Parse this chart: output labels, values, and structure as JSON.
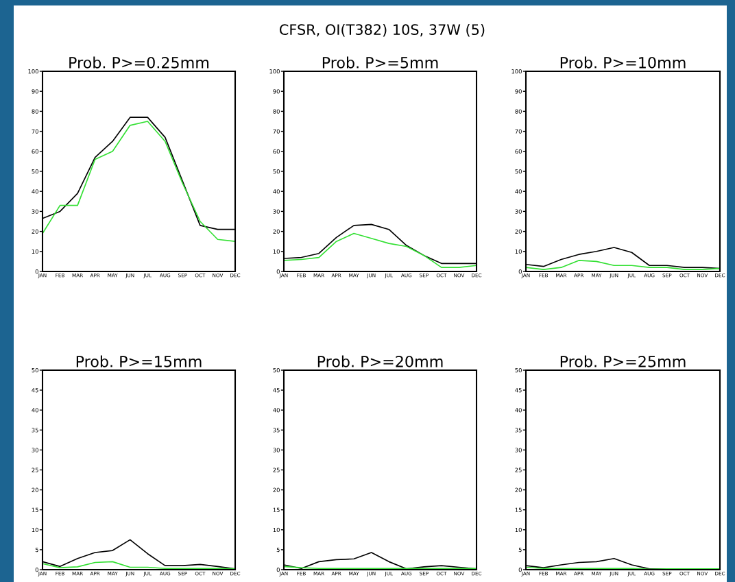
{
  "chart_data": [
    {
      "type": "line",
      "title": "Prob. P>=0.25mm",
      "annotations": [
        "CFSR, OI(T382) 10S, 37W (5)"
      ],
      "categories": [
        "JAN",
        "FEB",
        "MAR",
        "APR",
        "MAY",
        "JUN",
        "JUL",
        "AUG",
        "SEP",
        "OCT",
        "NOV",
        "DEC"
      ],
      "ylim": [
        0,
        100
      ],
      "yticks": [
        0,
        10,
        20,
        30,
        40,
        50,
        60,
        70,
        80,
        90,
        100
      ],
      "grid": false,
      "legend": false,
      "marker": "none",
      "line_style": "solid",
      "series": [
        {
          "color": "#000000",
          "values": [
            26.5,
            30,
            39,
            57,
            65,
            77,
            77,
            67,
            45,
            23,
            21,
            21
          ]
        },
        {
          "color": "#33e033",
          "values": [
            19,
            33,
            33,
            56,
            60,
            73,
            75,
            65,
            44,
            25,
            16,
            15
          ]
        }
      ]
    },
    {
      "type": "line",
      "title": "Prob. P>=5mm",
      "categories": [
        "JAN",
        "FEB",
        "MAR",
        "APR",
        "MAY",
        "JUN",
        "JUL",
        "AUG",
        "SEP",
        "OCT",
        "NOV",
        "DEC"
      ],
      "ylim": [
        0,
        100
      ],
      "yticks": [
        0,
        10,
        20,
        30,
        40,
        50,
        60,
        70,
        80,
        90,
        100
      ],
      "grid": false,
      "legend": false,
      "marker": "none",
      "line_style": "solid",
      "series": [
        {
          "color": "#000000",
          "values": [
            6.5,
            7,
            9,
            17,
            23,
            23.5,
            21,
            13,
            8,
            4,
            4,
            4
          ]
        },
        {
          "color": "#33e033",
          "values": [
            5.5,
            6,
            7,
            15,
            19,
            16.5,
            14,
            12.5,
            8,
            2,
            2,
            3
          ]
        }
      ]
    },
    {
      "type": "line",
      "title": "Prob. P>=10mm",
      "categories": [
        "JAN",
        "FEB",
        "MAR",
        "APR",
        "MAY",
        "JUN",
        "JUL",
        "AUG",
        "SEP",
        "OCT",
        "NOV",
        "DEC"
      ],
      "ylim": [
        0,
        100
      ],
      "yticks": [
        0,
        10,
        20,
        30,
        40,
        50,
        60,
        70,
        80,
        90,
        100
      ],
      "grid": false,
      "legend": false,
      "marker": "none",
      "line_style": "solid",
      "series": [
        {
          "color": "#000000",
          "values": [
            3.5,
            2.5,
            6,
            8.5,
            10,
            12,
            9.5,
            3,
            3,
            2,
            2,
            1.5
          ]
        },
        {
          "color": "#33e033",
          "values": [
            2,
            1,
            2,
            5.5,
            5,
            3,
            3,
            2,
            2,
            1,
            1,
            1.5
          ]
        }
      ]
    },
    {
      "type": "line",
      "title": "Prob. P>=15mm",
      "categories": [
        "JAN",
        "FEB",
        "MAR",
        "APR",
        "MAY",
        "JUN",
        "JUL",
        "AUG",
        "SEP",
        "OCT",
        "NOV",
        "DEC"
      ],
      "ylim": [
        0,
        50
      ],
      "yticks": [
        0,
        5,
        10,
        15,
        20,
        25,
        30,
        35,
        40,
        45,
        50
      ],
      "grid": false,
      "legend": false,
      "marker": "none",
      "line_style": "solid",
      "series": [
        {
          "color": "#000000",
          "values": [
            2,
            0.8,
            2.8,
            4.3,
            4.8,
            7.5,
            4,
            1,
            1,
            1.3,
            0.8,
            0.2
          ]
        },
        {
          "color": "#33e033",
          "values": [
            1.5,
            0.5,
            0.7,
            1.8,
            2,
            0.6,
            0.6,
            0.3,
            0.3,
            0.3,
            0.3,
            0.2
          ]
        }
      ]
    },
    {
      "type": "line",
      "title": "Prob. P>=20mm",
      "categories": [
        "JAN",
        "FEB",
        "MAR",
        "APR",
        "MAY",
        "JUN",
        "JUL",
        "AUG",
        "SEP",
        "OCT",
        "NOV",
        "DEC"
      ],
      "ylim": [
        0,
        50
      ],
      "yticks": [
        0,
        5,
        10,
        15,
        20,
        25,
        30,
        35,
        40,
        45,
        50
      ],
      "grid": false,
      "legend": false,
      "marker": "none",
      "line_style": "solid",
      "series": [
        {
          "color": "#000000",
          "values": [
            1.2,
            0.3,
            2,
            2.5,
            2.7,
            4.3,
            2,
            0.2,
            0.7,
            1,
            0.6,
            0.2
          ]
        },
        {
          "color": "#33e033",
          "values": [
            0.8,
            0.5,
            0.3,
            0.3,
            0.3,
            0.3,
            0.3,
            0.3,
            0.3,
            0.3,
            0.3,
            0.3
          ]
        }
      ]
    },
    {
      "type": "line",
      "title": "Prob. P>=25mm",
      "categories": [
        "JAN",
        "FEB",
        "MAR",
        "APR",
        "MAY",
        "JUN",
        "JUL",
        "AUG",
        "SEP",
        "OCT",
        "NOV",
        "DEC"
      ],
      "ylim": [
        0,
        50
      ],
      "yticks": [
        0,
        5,
        10,
        15,
        20,
        25,
        30,
        35,
        40,
        45,
        50
      ],
      "grid": false,
      "legend": false,
      "marker": "none",
      "line_style": "solid",
      "series": [
        {
          "color": "#000000",
          "values": [
            1,
            0.5,
            1.2,
            1.8,
            2,
            2.8,
            1.2,
            0.2,
            0.2,
            0.2,
            0.2,
            0.2
          ]
        },
        {
          "color": "#33e033",
          "values": [
            0.6,
            0.3,
            0.3,
            0.3,
            0.3,
            0.3,
            0.3,
            0.1,
            0.2,
            0.2,
            0.2,
            0.2
          ]
        }
      ]
    }
  ]
}
